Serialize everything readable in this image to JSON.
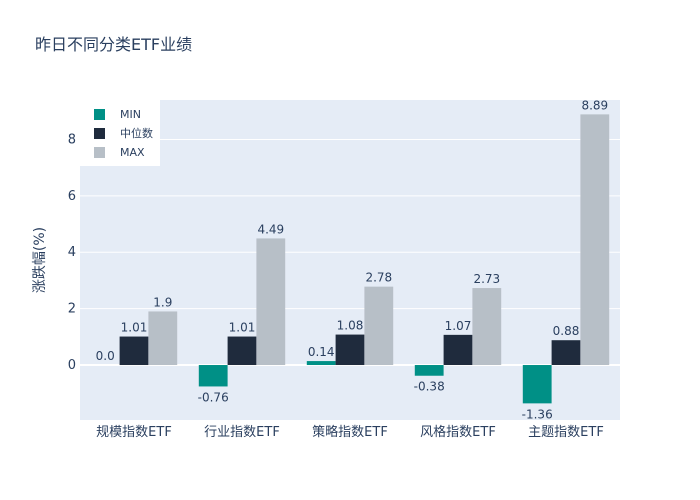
{
  "chart_data": {
    "type": "bar",
    "title": "昨日不同分类ETF业绩",
    "xlabel": "",
    "ylabel": "涨跌幅(%)",
    "categories": [
      "规模指数ETF",
      "行业指数ETF",
      "策略指数ETF",
      "风格指数ETF",
      "主题指数ETF"
    ],
    "series": [
      {
        "name": "MIN",
        "color": "#009086",
        "values": [
          0.0,
          -0.76,
          0.14,
          -0.38,
          -1.36
        ],
        "labels": [
          "0.0",
          "-0.76",
          "0.14",
          "-0.38",
          "-1.36"
        ]
      },
      {
        "name": "中位数",
        "color": "#1f2b3d",
        "values": [
          1.01,
          1.01,
          1.08,
          1.07,
          0.88
        ],
        "labels": [
          "1.01",
          "1.01",
          "1.08",
          "1.07",
          "0.88"
        ]
      },
      {
        "name": "MAX",
        "color": "#b7bfc7",
        "values": [
          1.9,
          4.49,
          2.78,
          2.73,
          8.89
        ],
        "labels": [
          "1.9",
          "4.49",
          "2.78",
          "2.73",
          "8.89"
        ]
      }
    ],
    "ylim": [
      -1.95,
      9.4
    ],
    "yticks": [
      0,
      2,
      4,
      6,
      8
    ],
    "grid": true,
    "legend": "top-left",
    "plot_bg": "#e5ecf6"
  }
}
